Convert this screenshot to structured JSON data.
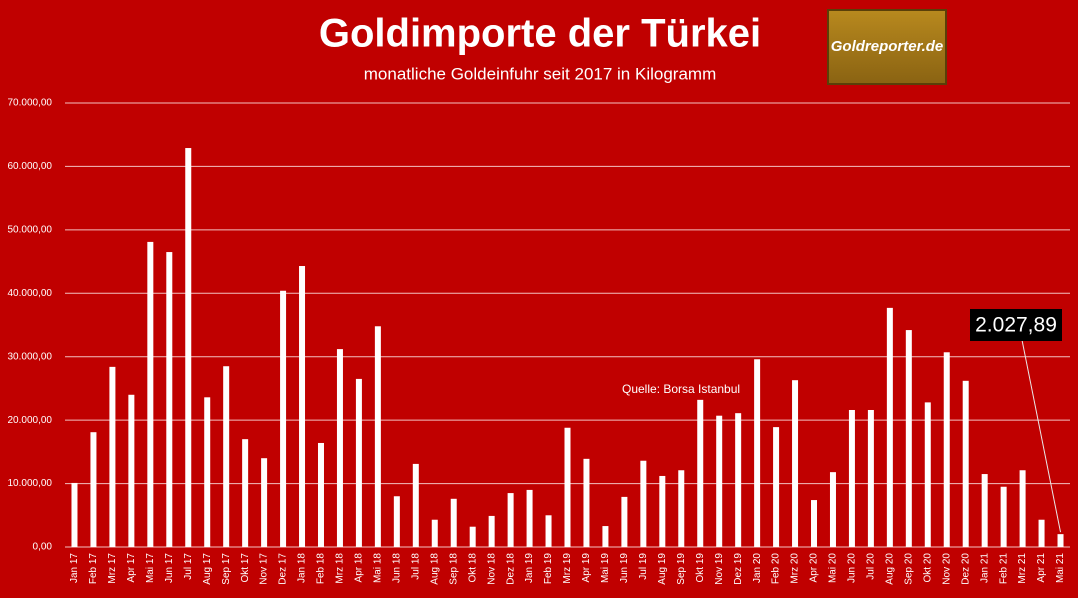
{
  "chart_data": {
    "type": "bar",
    "title": "Goldimporte der Türkei",
    "subtitle": "monatliche Goldeinfuhr seit 2017 in Kilogramm",
    "logo": "Goldreporter.de",
    "source": "Quelle: Borsa Istanbul",
    "color": "#ffffff",
    "grid": true,
    "categories": [
      "Jan 17",
      "Feb 17",
      "Mrz 17",
      "Apr 17",
      "Mai 17",
      "Jun 17",
      "Jul 17",
      "Aug 17",
      "Sep 17",
      "Okt 17",
      "Nov 17",
      "Dez 17",
      "Jan 18",
      "Feb 18",
      "Mrz 18",
      "Apr 18",
      "Mai 18",
      "Jun 18",
      "Jul 18",
      "Aug 18",
      "Sep 18",
      "Okt 18",
      "Nov 18",
      "Dez 18",
      "Jan 19",
      "Feb 19",
      "Mrz 19",
      "Apr 19",
      "Mai 19",
      "Jun 19",
      "Jul 19",
      "Aug 19",
      "Sep 19",
      "Okt 19",
      "Nov 19",
      "Dez 19",
      "Jan 20",
      "Feb 20",
      "Mrz 20",
      "Apr 20",
      "Mai 20",
      "Jun 20",
      "Jul 20",
      "Aug 20",
      "Sep 20",
      "Okt 20",
      "Nov 20",
      "Dez 20",
      "Jan 21",
      "Feb 21",
      "Mrz 21",
      "Apr 21",
      "Mai 21"
    ],
    "values": [
      10100,
      18100,
      28400,
      24000,
      48100,
      46500,
      62900,
      23600,
      28500,
      17000,
      14000,
      40400,
      44300,
      16400,
      31200,
      26500,
      34800,
      8000,
      13100,
      4300,
      7600,
      3200,
      4900,
      8500,
      9000,
      5000,
      18800,
      13900,
      3300,
      7900,
      13600,
      11200,
      12100,
      23200,
      20700,
      21100,
      29600,
      18900,
      26300,
      7400,
      11800,
      21600,
      21600,
      37700,
      34200,
      22800,
      30700,
      26200,
      11500,
      9500,
      12100,
      4300,
      2027.89
    ],
    "value_labels": [
      null,
      null,
      null,
      null,
      null,
      null,
      null,
      null,
      null,
      null,
      null,
      null,
      null,
      null,
      null,
      null,
      null,
      null,
      null,
      null,
      null,
      null,
      null,
      null,
      null,
      null,
      null,
      null,
      null,
      null,
      null,
      null,
      null,
      null,
      null,
      null,
      null,
      null,
      null,
      null,
      null,
      null,
      null,
      null,
      null,
      null,
      null,
      null,
      null,
      null,
      null,
      null,
      "2.027,89"
    ],
    "ylim": [
      0,
      70000
    ],
    "yticks": [
      {
        "value": 0,
        "label": "0,00"
      },
      {
        "value": 10000,
        "label": "10.000,00"
      },
      {
        "value": 20000,
        "label": "20.000,00"
      },
      {
        "value": 30000,
        "label": "30.000,00"
      },
      {
        "value": 40000,
        "label": "40.000,00"
      },
      {
        "value": 50000,
        "label": "50.000,00"
      },
      {
        "value": 60000,
        "label": "60.000,00"
      },
      {
        "value": 70000,
        "label": "70.000,00"
      }
    ]
  }
}
